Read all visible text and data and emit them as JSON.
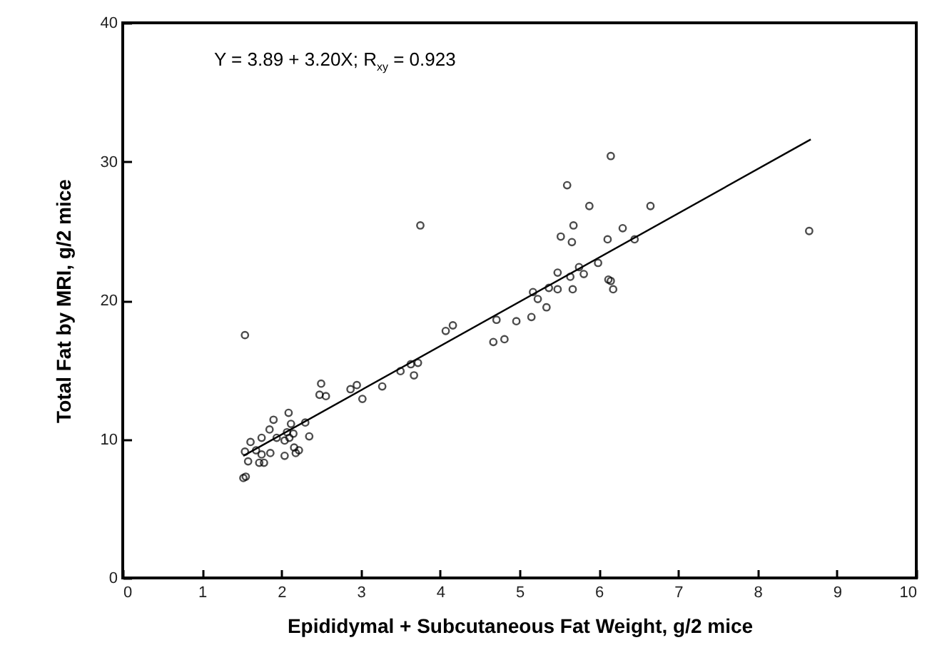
{
  "chart_data": {
    "type": "scatter",
    "xlabel": "Epididymal + Subcutaneous Fat Weight, g/2 mice",
    "ylabel": "Total Fat by MRI, g/2 mice",
    "annotations": [
      "Y = 3.89 + 3.20X; R$_{xy}$ = 0.923"
    ],
    "xlim": [
      0,
      10
    ],
    "xticks": [
      0,
      1,
      2,
      3,
      4,
      5,
      6,
      7,
      8,
      9,
      10
    ],
    "ylim": [
      0,
      40
    ],
    "yticks": [
      0,
      10,
      20,
      30,
      40
    ],
    "grid": false,
    "series": [
      {
        "marker": "circle",
        "color": "#000000",
        "x": [
          1.52,
          1.55,
          1.58,
          1.54,
          1.61,
          1.68,
          1.72,
          1.78,
          1.75,
          1.86,
          1.75,
          1.85,
          1.9,
          1.94,
          2.04,
          2.04,
          2.09,
          2.07,
          2.12,
          2.15,
          2.1,
          2.16,
          2.18,
          2.22,
          2.3,
          2.35,
          2.5,
          2.48,
          2.56,
          2.87,
          2.95,
          3.02,
          3.27,
          3.5,
          3.63,
          3.72,
          3.67,
          3.75,
          4.07,
          4.16,
          4.67,
          4.81,
          4.71,
          4.96,
          5.15,
          5.34,
          5.17,
          5.23,
          5.37,
          5.48,
          5.67,
          5.48,
          5.64,
          5.75,
          5.81,
          5.99,
          5.52,
          5.66,
          5.68,
          5.6,
          5.88,
          6.11,
          6.12,
          6.15,
          6.65,
          6.3,
          6.45,
          8.65,
          6.15,
          6.18,
          1.54
        ],
        "values": [
          7.2,
          7.3,
          8.4,
          9.1,
          9.8,
          9.2,
          8.3,
          8.3,
          8.9,
          9.0,
          10.1,
          10.7,
          11.4,
          10.1,
          9.9,
          8.8,
          11.9,
          10.5,
          11.1,
          10.4,
          10.1,
          9.4,
          9.0,
          9.2,
          11.2,
          10.2,
          14.0,
          13.2,
          13.1,
          13.6,
          13.9,
          12.9,
          13.8,
          14.9,
          15.4,
          15.5,
          14.6,
          25.4,
          17.8,
          18.2,
          17.0,
          17.2,
          18.6,
          18.5,
          18.8,
          19.5,
          20.6,
          20.1,
          20.9,
          20.8,
          20.8,
          22.0,
          21.7,
          22.4,
          21.9,
          22.7,
          24.6,
          24.2,
          25.4,
          28.3,
          26.8,
          24.4,
          21.5,
          30.4,
          26.8,
          25.2,
          24.4,
          25.0,
          21.4,
          20.8,
          17.5
        ]
      },
      {
        "type": "line",
        "marker": "none",
        "color": "#000000",
        "x": [
          1.52,
          8.67
        ],
        "values": [
          8.8,
          31.6
        ]
      }
    ]
  }
}
